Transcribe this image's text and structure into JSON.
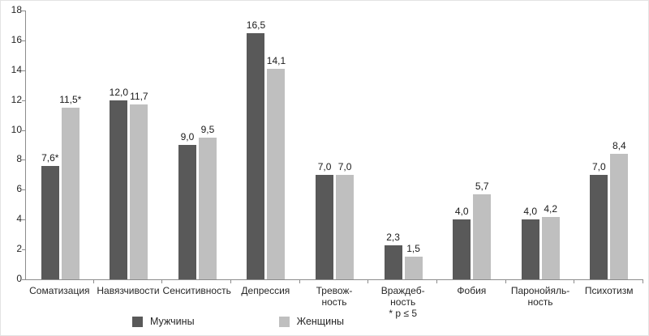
{
  "chart_data": {
    "type": "bar",
    "title": "",
    "categories": [
      [
        "Соматизация"
      ],
      [
        "Навязчивости"
      ],
      [
        "Сенситивность"
      ],
      [
        "Депрессия"
      ],
      [
        "Тревож-",
        "ность"
      ],
      [
        "Враждеб-",
        "ность",
        "* p ≤ 5"
      ],
      [
        "Фобия"
      ],
      [
        "Паронойяль-",
        "ность"
      ],
      [
        "Психотизм"
      ]
    ],
    "series": [
      {
        "name": "Мужчины",
        "color": "#595959",
        "values": [
          7.6,
          12.0,
          9.0,
          16.5,
          7.0,
          2.3,
          4.0,
          4.0,
          7.0
        ],
        "labels": [
          "7,6*",
          "12,0",
          "9,0",
          "16,5",
          "7,0",
          "2,3",
          "4,0",
          "4,0",
          "7,0"
        ]
      },
      {
        "name": "Женщины",
        "color": "#bfbfbf",
        "values": [
          11.5,
          11.7,
          9.5,
          14.1,
          7.0,
          1.5,
          5.7,
          4.2,
          8.4
        ],
        "labels": [
          "11,5*",
          "11,7",
          "9,5",
          "14,1",
          "7,0",
          "1,5",
          "5,7",
          "4,2",
          "8,4"
        ]
      }
    ],
    "ylim": [
      0,
      18
    ],
    "ytick_step": 2,
    "grid": false,
    "legend_position": "bottom",
    "annotation": "* p ≤ 5"
  },
  "colors": {
    "axis": "#8c8c8c",
    "text": "#262626"
  }
}
